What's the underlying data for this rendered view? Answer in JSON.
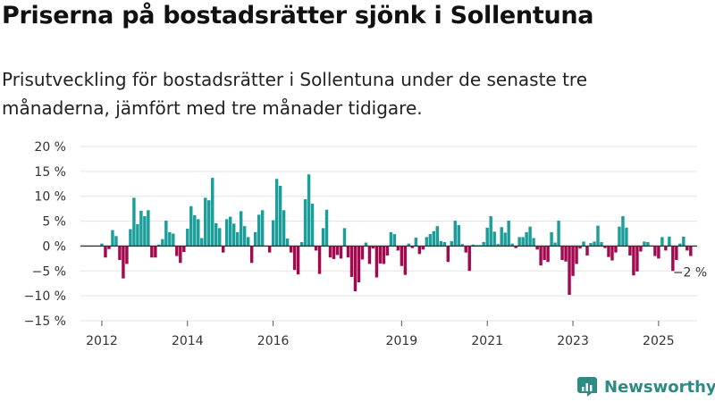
{
  "title": "Priserna på bostadsrätter sjönk i Sollentuna",
  "subtitle": "Prisutveckling för bostadsrätter i Sollentuna under de senaste tre månaderna, jämfört med tre månader tidigare.",
  "brand": {
    "name": "Newsworthy"
  },
  "colors": {
    "positive": "#1b9e9a",
    "negative": "#a3094f",
    "grid": "#e3e3e3",
    "zero_line": "#333333"
  },
  "chart_data": {
    "type": "bar",
    "unit": "%",
    "ylim": [
      -15,
      20
    ],
    "yticks": [
      20,
      15,
      10,
      5,
      0,
      -5,
      -10,
      -15
    ],
    "ytick_labels": [
      "20 %",
      "15 %",
      "10 %",
      "5 %",
      "0 %",
      "−5 %",
      "−10 %",
      "−15 %"
    ],
    "xlim": [
      2011.5,
      2025.9
    ],
    "xticks": [
      2012,
      2014,
      2016,
      2019,
      2021,
      2023,
      2025
    ],
    "xtick_labels": [
      "2012",
      "2014",
      "2016",
      "2019",
      "2021",
      "2023",
      "2025"
    ],
    "start": "2012-01",
    "frequency": "monthly",
    "values": [
      0.5,
      -2.3,
      -0.6,
      3.2,
      2.0,
      -2.8,
      -6.5,
      -3.6,
      3.4,
      9.7,
      4.4,
      7.1,
      6.0,
      7.2,
      -2.3,
      -2.3,
      0.3,
      1.4,
      5.1,
      2.8,
      2.5,
      -2.0,
      -3.4,
      -1.2,
      3.5,
      8.0,
      6.2,
      5.4,
      1.6,
      9.7,
      9.2,
      13.7,
      4.6,
      3.6,
      -1.3,
      5.4,
      5.9,
      4.5,
      2.8,
      7.0,
      4.0,
      1.8,
      -3.4,
      2.8,
      6.3,
      7.2,
      0.1,
      -1.3,
      5.2,
      13.5,
      12.1,
      7.2,
      1.5,
      -1.3,
      -4.8,
      -5.7,
      0.8,
      9.4,
      14.4,
      8.5,
      -0.9,
      -5.6,
      3.6,
      7.3,
      -2.3,
      -2.6,
      -1.8,
      -2.5,
      3.6,
      -2.3,
      -6.2,
      -9.1,
      -7.3,
      -2.7,
      0.7,
      -3.6,
      -0.5,
      -6.3,
      -3.5,
      -3.6,
      -1.9,
      2.8,
      2.4,
      -0.9,
      -4.0,
      -5.8,
      0.5,
      -0.4,
      1.7,
      -1.6,
      -0.7,
      1.8,
      2.4,
      3.0,
      4.0,
      1.0,
      0.8,
      -3.2,
      1.0,
      5.1,
      4.2,
      0.4,
      -1.3,
      -5.0,
      0.3,
      0.2,
      0.2,
      0.8,
      3.7,
      6.0,
      2.9,
      0.4,
      3.8,
      2.7,
      5.1,
      0.5,
      -0.4,
      1.8,
      1.8,
      2.8,
      3.9,
      1.6,
      -0.7,
      -3.9,
      -2.8,
      -3.2,
      2.8,
      0.7,
      5.1,
      -2.8,
      -3.1,
      -9.8,
      -6.0,
      -3.6,
      -0.5,
      0.9,
      -1.9,
      0.6,
      0.9,
      4.1,
      0.8,
      -0.4,
      -2.2,
      -2.9,
      -1.3,
      3.9,
      6.0,
      3.7,
      -1.9,
      -5.9,
      -5.1,
      -1.1,
      0.9,
      0.8,
      0.1,
      -2.0,
      -2.5,
      1.8,
      -0.9,
      1.9,
      -5.0,
      -2.8,
      0.5,
      1.9,
      -0.9,
      -2.0
    ],
    "annotation": "−2 %"
  }
}
